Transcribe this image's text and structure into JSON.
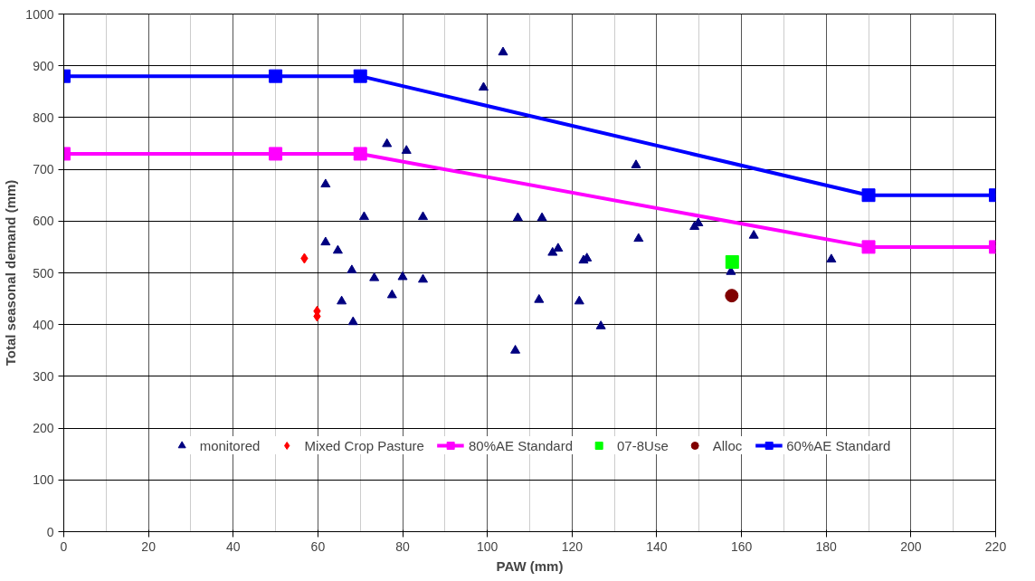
{
  "chart_data": {
    "type": "scatter",
    "xlabel": "PAW (mm)",
    "ylabel": "Total seasonal demand (mm)",
    "xlim": [
      0,
      220
    ],
    "ylim": [
      0,
      1000
    ],
    "xticks": [
      0,
      20,
      40,
      60,
      80,
      100,
      120,
      140,
      160,
      180,
      200,
      220
    ],
    "yticks": [
      0,
      100,
      200,
      300,
      400,
      500,
      600,
      700,
      800,
      900,
      1000
    ],
    "grid": true,
    "legend": "bottom",
    "series": [
      {
        "name": "monitored",
        "marker": "triangle",
        "color": "#000080",
        "x": [
          76.3,
          80.9,
          61.8,
          70.9,
          84.8,
          61.8,
          64.7,
          68.0,
          73.3,
          80.0,
          84.8,
          77.5,
          65.6,
          68.3,
          103.7,
          99.1,
          135.1,
          107.2,
          112.9,
          135.7,
          115.4,
          116.7,
          122.7,
          123.5,
          112.2,
          121.7,
          126.8,
          106.6,
          148.9,
          149.8,
          162.9,
          181.2,
          157.5
        ],
        "values": [
          749,
          736,
          671,
          608,
          608,
          559,
          543,
          505,
          490,
          492,
          487,
          457,
          445,
          405,
          926,
          858,
          708,
          606,
          606,
          566,
          539,
          547,
          524,
          528,
          448,
          445,
          397,
          350,
          589,
          596,
          572,
          526,
          502
        ]
      },
      {
        "name": "Mixed Crop Pasture",
        "marker": "diamond",
        "color": "#ff0000",
        "x": [
          56.8,
          59.8,
          59.8
        ],
        "values": [
          528,
          426,
          416
        ]
      },
      {
        "name": "80%AE Standard",
        "type": "line",
        "marker": "square",
        "color": "#ff00ff",
        "x": [
          0,
          50,
          70,
          190,
          220
        ],
        "values": [
          730,
          730,
          730,
          550,
          550
        ]
      },
      {
        "name": "07-8Use",
        "marker": "square",
        "color": "#00ff00",
        "x": [
          157.8
        ],
        "values": [
          521
        ]
      },
      {
        "name": "Alloc",
        "marker": "circle",
        "color": "#800000",
        "x": [
          157.7
        ],
        "values": [
          456
        ]
      },
      {
        "name": "60%AE Standard",
        "type": "line",
        "marker": "square",
        "color": "#0000ff",
        "x": [
          0,
          50,
          70,
          190,
          220
        ],
        "values": [
          880,
          880,
          880,
          650,
          650
        ]
      }
    ]
  }
}
